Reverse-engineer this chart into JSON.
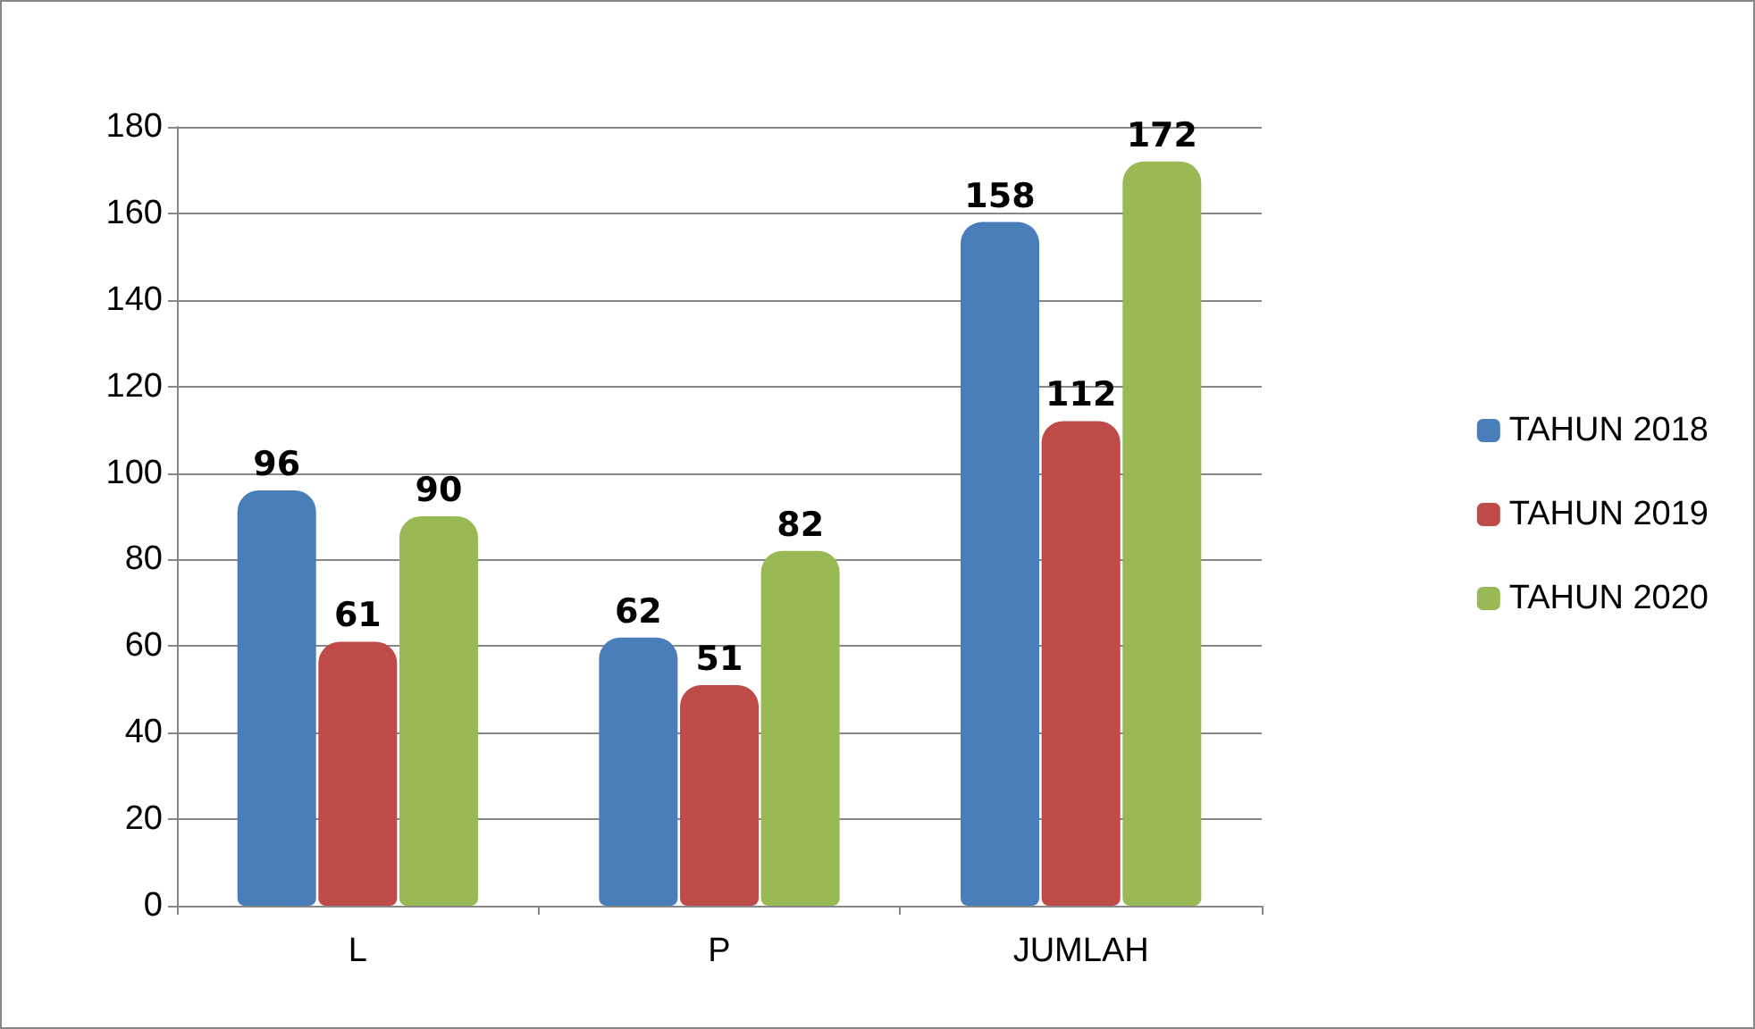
{
  "chart_data": {
    "type": "bar",
    "categories": [
      "L",
      "P",
      "JUMLAH"
    ],
    "series": [
      {
        "name": "TAHUN 2018",
        "color": "#4a7ebb",
        "values": [
          96,
          62,
          158
        ]
      },
      {
        "name": "TAHUN 2019",
        "color": "#be4b48",
        "values": [
          61,
          51,
          112
        ]
      },
      {
        "name": "TAHUN 2020",
        "color": "#98b954",
        "values": [
          90,
          82,
          172
        ]
      }
    ],
    "ylim": [
      0,
      180
    ],
    "yticks": [
      0,
      20,
      40,
      60,
      80,
      100,
      120,
      140,
      160,
      180
    ],
    "grid": "y",
    "legend": "right",
    "data_labels": true
  }
}
